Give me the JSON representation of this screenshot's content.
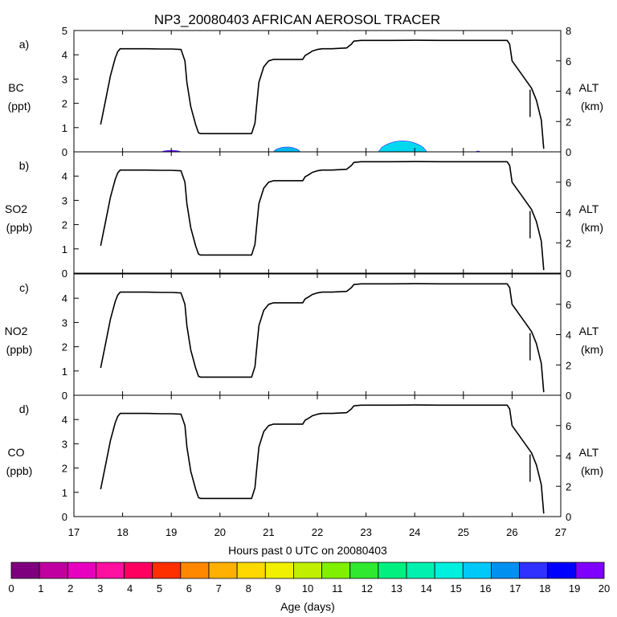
{
  "chart_data": {
    "type": "line",
    "title": "NP3_20080403 AFRICAN AEROSOL TRACER",
    "xlabel": "Hours past 0 UTC on 20080403",
    "xlim": [
      17,
      27
    ],
    "x_ticks": [
      "17",
      "18",
      "19",
      "20",
      "21",
      "22",
      "23",
      "24",
      "25",
      "26",
      "27"
    ],
    "right_axis": {
      "label": "ALT",
      "units": "(km)",
      "ylim": [
        0,
        8
      ]
    },
    "panels": [
      {
        "letter": "a)",
        "species": "BC",
        "units": "(ppt)",
        "ylim": [
          0,
          5
        ],
        "left_ticks": [
          "0",
          "1",
          "2",
          "3",
          "4",
          "5"
        ],
        "right_ticks": [
          "0",
          "2",
          "4",
          "6",
          "8"
        ],
        "tracer_blobs": [
          {
            "x_start": 18.8,
            "x_end": 19.2,
            "peak": 0.06,
            "color": "#8000ff"
          },
          {
            "x_start": 21.1,
            "x_end": 21.65,
            "peak": 0.2,
            "color": "#00b8f0"
          },
          {
            "x_start": 23.25,
            "x_end": 24.25,
            "peak": 0.45,
            "color": "#00d8f0"
          },
          {
            "x_start": 25.25,
            "x_end": 25.35,
            "peak": 0.03,
            "color": "#8000ff"
          }
        ]
      },
      {
        "letter": "b)",
        "species": "SO2",
        "units": "(ppb)",
        "ylim": [
          0,
          5
        ],
        "left_ticks": [
          "0",
          "1",
          "2",
          "3",
          "4"
        ],
        "right_ticks": [
          "0",
          "2",
          "4",
          "6"
        ]
      },
      {
        "letter": "c)",
        "species": "NO2",
        "units": "(ppb)",
        "ylim": [
          0,
          5
        ],
        "left_ticks": [
          "0",
          "1",
          "2",
          "3",
          "4"
        ],
        "right_ticks": [
          "0",
          "2",
          "4",
          "6"
        ]
      },
      {
        "letter": "d)",
        "species": "CO",
        "units": "(ppb)",
        "ylim": [
          0,
          5
        ],
        "left_ticks": [
          "0",
          "1",
          "2",
          "3",
          "4"
        ],
        "right_ticks": [
          "0",
          "2",
          "4",
          "6"
        ]
      }
    ],
    "altitude_km": {
      "x": [
        17.55,
        17.65,
        17.75,
        17.85,
        17.9,
        17.95,
        18.2,
        18.5,
        18.8,
        19.0,
        19.2,
        19.28,
        19.32,
        19.4,
        19.5,
        19.56,
        19.6,
        20.0,
        20.5,
        20.65,
        20.72,
        20.75,
        20.8,
        20.9,
        21.0,
        21.1,
        21.2,
        21.4,
        21.7,
        21.75,
        21.8,
        21.85,
        21.9,
        22.0,
        22.1,
        22.3,
        22.6,
        22.7,
        22.75,
        22.9,
        23.5,
        24.0,
        24.5,
        25.0,
        25.5,
        25.9,
        25.95,
        26.0,
        26.2,
        26.4,
        26.5,
        26.6,
        26.65
      ],
      "y": [
        1.8,
        3.4,
        5.0,
        6.2,
        6.6,
        6.8,
        6.8,
        6.8,
        6.78,
        6.78,
        6.75,
        6.0,
        4.6,
        3.0,
        1.8,
        1.25,
        1.2,
        1.2,
        1.2,
        1.2,
        1.9,
        3.0,
        4.6,
        5.6,
        6.0,
        6.1,
        6.1,
        6.1,
        6.1,
        6.35,
        6.45,
        6.55,
        6.65,
        6.75,
        6.8,
        6.8,
        6.85,
        7.1,
        7.3,
        7.35,
        7.35,
        7.36,
        7.35,
        7.35,
        7.35,
        7.35,
        7.1,
        6.0,
        5.1,
        4.2,
        3.4,
        2.1,
        0.2
      ]
    },
    "colorbar": {
      "label": "Age (days)",
      "ticks": [
        "0",
        "1",
        "2",
        "3",
        "4",
        "5",
        "6",
        "7",
        "8",
        "9",
        "10",
        "11",
        "12",
        "13",
        "14",
        "15",
        "16",
        "17",
        "18",
        "19",
        "20"
      ],
      "colors": [
        "#7f007f",
        "#c000a0",
        "#e800c0",
        "#ff10a0",
        "#ff0060",
        "#ff3000",
        "#ff8800",
        "#ffb000",
        "#ffd800",
        "#f0f000",
        "#c0f000",
        "#80f000",
        "#30e830",
        "#00f080",
        "#00f0b0",
        "#00f0e0",
        "#00c8f8",
        "#0090f0",
        "#3030ff",
        "#0000ff",
        "#8000ff"
      ]
    }
  }
}
